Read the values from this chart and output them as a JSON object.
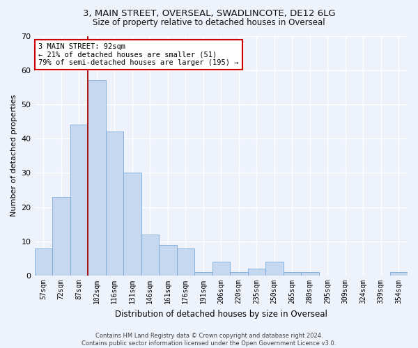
{
  "title_line1": "3, MAIN STREET, OVERSEAL, SWADLINCOTE, DE12 6LG",
  "title_line2": "Size of property relative to detached houses in Overseal",
  "xlabel": "Distribution of detached houses by size in Overseal",
  "ylabel": "Number of detached properties",
  "bar_color": "#c5d8f0",
  "bar_edge_color": "#7aabdb",
  "bar_width": 1.0,
  "categories": [
    "57sqm",
    "72sqm",
    "87sqm",
    "102sqm",
    "116sqm",
    "131sqm",
    "146sqm",
    "161sqm",
    "176sqm",
    "191sqm",
    "206sqm",
    "220sqm",
    "235sqm",
    "250sqm",
    "265sqm",
    "280sqm",
    "295sqm",
    "309sqm",
    "324sqm",
    "339sqm",
    "354sqm"
  ],
  "values": [
    8,
    23,
    44,
    57,
    42,
    30,
    12,
    9,
    8,
    1,
    4,
    1,
    2,
    4,
    1,
    1,
    0,
    0,
    0,
    0,
    1
  ],
  "ylim": [
    0,
    70
  ],
  "yticks": [
    0,
    10,
    20,
    30,
    40,
    50,
    60,
    70
  ],
  "vline_x": 2.5,
  "vline_color": "#aa0000",
  "annotation_text": "3 MAIN STREET: 92sqm\n← 21% of detached houses are smaller (51)\n79% of semi-detached houses are larger (195) →",
  "annotation_box_facecolor": "#ffffff",
  "annotation_box_edgecolor": "#cc0000",
  "footer_text": "Contains HM Land Registry data © Crown copyright and database right 2024.\nContains public sector information licensed under the Open Government Licence v3.0.",
  "background_color": "#eef2fa",
  "plot_bg_color": "#eef2fa",
  "grid_color": "#ffffff",
  "title1_fontsize": 9.5,
  "title2_fontsize": 8.5,
  "ylabel_fontsize": 8,
  "xlabel_fontsize": 8.5,
  "tick_fontsize": 7,
  "annot_fontsize": 7.5,
  "footer_fontsize": 6
}
